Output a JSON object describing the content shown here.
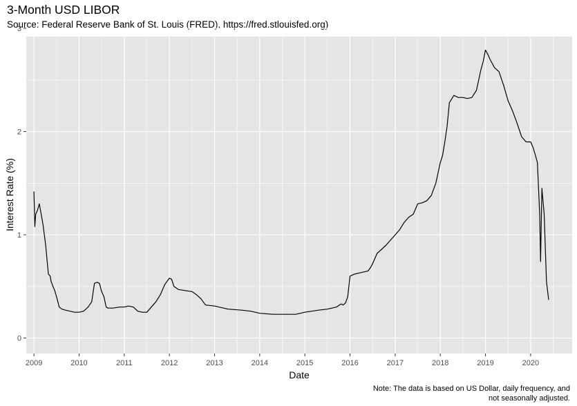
{
  "chart_data": {
    "type": "line",
    "title": "3-Month USD LIBOR",
    "subtitle": "Source: Federal Reserve Bank of St. Louis (FRED), https://fred.stlouisfed.org)",
    "caption": "Note: The data is based on US Dollar, daily frequency, and not seasonally adjusted.",
    "xlabel": "Date",
    "ylabel": "Interest Rate (%)",
    "xlim": [
      2008.83,
      2020.92
    ],
    "ylim": [
      -0.15,
      2.92
    ],
    "x_ticks": [
      2009,
      2010,
      2011,
      2012,
      2013,
      2014,
      2015,
      2016,
      2017,
      2018,
      2019,
      2020
    ],
    "x_tick_labels": [
      "2009",
      "2010",
      "2011",
      "2012",
      "2013",
      "2014",
      "2015",
      "2016",
      "2017",
      "2018",
      "2019",
      "2020"
    ],
    "y_ticks": [
      0,
      1,
      2,
      3
    ],
    "y_tick_labels": [
      "0",
      "1",
      "2",
      "3"
    ],
    "grid": true,
    "panel_background": "#e5e5e5",
    "grid_color": "#ffffff",
    "line_color": "#000000",
    "series": [
      {
        "x": [
          2009.0,
          2009.02,
          2009.04,
          2009.08,
          2009.12,
          2009.16,
          2009.2,
          2009.26,
          2009.32,
          2009.36,
          2009.38,
          2009.42,
          2009.46,
          2009.5,
          2009.56,
          2009.62,
          2009.7,
          2009.8,
          2009.9,
          2010.0,
          2010.1,
          2010.2,
          2010.28,
          2010.34,
          2010.4,
          2010.45,
          2010.5,
          2010.55,
          2010.6,
          2010.64,
          2010.68,
          2010.75,
          2010.9,
          2011.0,
          2011.1,
          2011.2,
          2011.3,
          2011.4,
          2011.5,
          2011.6,
          2011.7,
          2011.8,
          2011.9,
          2012.0,
          2012.05,
          2012.1,
          2012.2,
          2012.35,
          2012.5,
          2012.6,
          2012.7,
          2012.8,
          2013.0,
          2013.3,
          2013.6,
          2013.8,
          2014.0,
          2014.3,
          2014.5,
          2014.8,
          2015.0,
          2015.3,
          2015.5,
          2015.7,
          2015.8,
          2015.85,
          2015.9,
          2015.95,
          2016.0,
          2016.1,
          2016.2,
          2016.3,
          2016.4,
          2016.45,
          2016.5,
          2016.6,
          2016.7,
          2016.8,
          2016.9,
          2017.0,
          2017.1,
          2017.2,
          2017.3,
          2017.4,
          2017.5,
          2017.6,
          2017.7,
          2017.8,
          2017.9,
          2018.0,
          2018.05,
          2018.1,
          2018.15,
          2018.2,
          2018.3,
          2018.4,
          2018.5,
          2018.6,
          2018.7,
          2018.8,
          2018.9,
          2018.95,
          2019.0,
          2019.05,
          2019.1,
          2019.2,
          2019.3,
          2019.4,
          2019.5,
          2019.6,
          2019.7,
          2019.8,
          2019.9,
          2020.0,
          2020.05,
          2020.1,
          2020.15,
          2020.2,
          2020.22,
          2020.25,
          2020.3,
          2020.35,
          2020.4
        ],
        "y": [
          1.42,
          1.08,
          1.2,
          1.24,
          1.3,
          1.2,
          1.1,
          0.9,
          0.62,
          0.6,
          0.55,
          0.5,
          0.46,
          0.4,
          0.3,
          0.28,
          0.27,
          0.26,
          0.25,
          0.25,
          0.26,
          0.3,
          0.35,
          0.53,
          0.54,
          0.53,
          0.45,
          0.4,
          0.3,
          0.29,
          0.29,
          0.29,
          0.3,
          0.3,
          0.31,
          0.3,
          0.26,
          0.25,
          0.25,
          0.3,
          0.35,
          0.42,
          0.52,
          0.58,
          0.57,
          0.5,
          0.47,
          0.46,
          0.45,
          0.42,
          0.38,
          0.32,
          0.31,
          0.28,
          0.27,
          0.26,
          0.24,
          0.23,
          0.23,
          0.23,
          0.25,
          0.27,
          0.28,
          0.3,
          0.33,
          0.32,
          0.34,
          0.4,
          0.6,
          0.62,
          0.63,
          0.64,
          0.65,
          0.68,
          0.72,
          0.82,
          0.86,
          0.9,
          0.95,
          1.0,
          1.05,
          1.12,
          1.17,
          1.2,
          1.3,
          1.31,
          1.33,
          1.38,
          1.5,
          1.7,
          1.77,
          1.9,
          2.05,
          2.28,
          2.35,
          2.33,
          2.33,
          2.32,
          2.33,
          2.4,
          2.6,
          2.68,
          2.79,
          2.75,
          2.7,
          2.62,
          2.58,
          2.45,
          2.3,
          2.2,
          2.08,
          1.95,
          1.9,
          1.9,
          1.85,
          1.78,
          1.7,
          1.2,
          0.74,
          1.45,
          1.2,
          0.55,
          0.37
        ]
      }
    ]
  }
}
